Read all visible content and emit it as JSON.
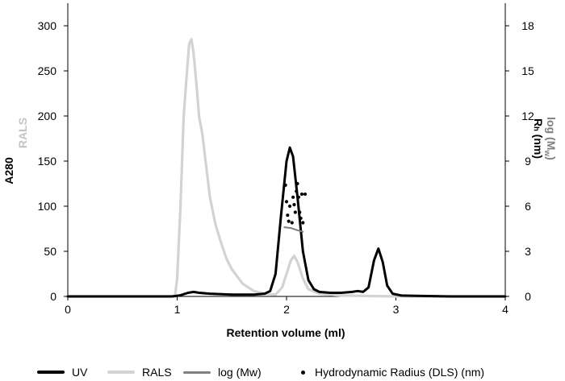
{
  "chart_data": {
    "type": "line",
    "title": "",
    "xlabel": "Retention volume (ml)",
    "ylabel_left": "A280",
    "ylabel_left_secondary": "RALS",
    "ylabel_right": "Rₕ (nm)",
    "ylabel_right_secondary": "log (M",
    "ylabel_right_secondary_sub": "w",
    "ylabel_right_secondary_close": ")",
    "xlim": [
      0,
      4
    ],
    "ylim_left": [
      0,
      325
    ],
    "ylim_right": [
      0,
      19.5
    ],
    "x_ticks": [
      "0",
      "1",
      "2",
      "3",
      "4"
    ],
    "y_left_ticks": [
      "0",
      "50",
      "100",
      "150",
      "200",
      "250",
      "300"
    ],
    "y_right_ticks": [
      "0",
      "3",
      "6",
      "9",
      "12",
      "15",
      "18"
    ],
    "grid": false,
    "legend_position": "bottom",
    "colors": {
      "UV": "#000000",
      "RALS": "#d3d3d3",
      "logMw": "#7f7f7f",
      "Rh": "#000000"
    },
    "series": [
      {
        "name": "UV",
        "x": [
          0.0,
          0.5,
          0.95,
          1.02,
          1.1,
          1.15,
          1.2,
          1.3,
          1.5,
          1.7,
          1.8,
          1.85,
          1.9,
          1.95,
          2.0,
          2.03,
          2.06,
          2.1,
          2.15,
          2.2,
          2.25,
          2.3,
          2.4,
          2.5,
          2.6,
          2.65,
          2.7,
          2.75,
          2.8,
          2.84,
          2.88,
          2.92,
          2.97,
          3.05,
          3.5,
          4.0
        ],
        "y": [
          0,
          0,
          0,
          1,
          4,
          5,
          4,
          3,
          2,
          2,
          3,
          6,
          25,
          90,
          150,
          165,
          155,
          110,
          50,
          18,
          8,
          5,
          4,
          4,
          5,
          6,
          5,
          10,
          40,
          53,
          38,
          12,
          3,
          1,
          0,
          0
        ]
      },
      {
        "name": "RALS",
        "x": [
          0.0,
          0.9,
          0.98,
          1.0,
          1.03,
          1.06,
          1.09,
          1.11,
          1.13,
          1.15,
          1.18,
          1.2,
          1.23,
          1.26,
          1.3,
          1.35,
          1.4,
          1.45,
          1.5,
          1.6,
          1.7,
          1.8,
          1.9,
          1.96,
          2.0,
          2.04,
          2.07,
          2.1,
          2.15,
          2.2,
          2.3,
          2.5,
          3.0,
          4.0
        ],
        "y": [
          0,
          0,
          0,
          20,
          100,
          200,
          250,
          280,
          285,
          270,
          230,
          200,
          180,
          150,
          110,
          80,
          60,
          42,
          30,
          14,
          6,
          3,
          2,
          10,
          25,
          40,
          45,
          38,
          20,
          8,
          3,
          1,
          0,
          0
        ]
      },
      {
        "name": "log (Mw)",
        "axis": "right",
        "x": [
          1.98,
          2.04,
          2.1,
          2.15
        ],
        "y": [
          4.6,
          4.55,
          4.4,
          4.3
        ]
      },
      {
        "name": "Hydrodynamic Radius (DLS) (nm)",
        "axis": "right",
        "x": [
          1.99,
          2.0,
          2.01,
          2.02,
          2.03,
          2.05,
          2.06,
          2.07,
          2.08,
          2.09,
          2.1,
          2.11,
          2.12,
          2.13,
          2.14,
          2.15,
          2.17
        ],
        "y": [
          7.4,
          6.3,
          5.4,
          5.0,
          6.0,
          4.9,
          6.6,
          6.1,
          5.6,
          7.0,
          7.5,
          6.6,
          5.6,
          5.2,
          6.8,
          4.9,
          6.8
        ]
      }
    ]
  },
  "legend": {
    "items": [
      {
        "label": "UV"
      },
      {
        "label": "RALS"
      },
      {
        "label": "log (Mw)"
      },
      {
        "label": "Hydrodynamic Radius (DLS) (nm)"
      }
    ]
  }
}
